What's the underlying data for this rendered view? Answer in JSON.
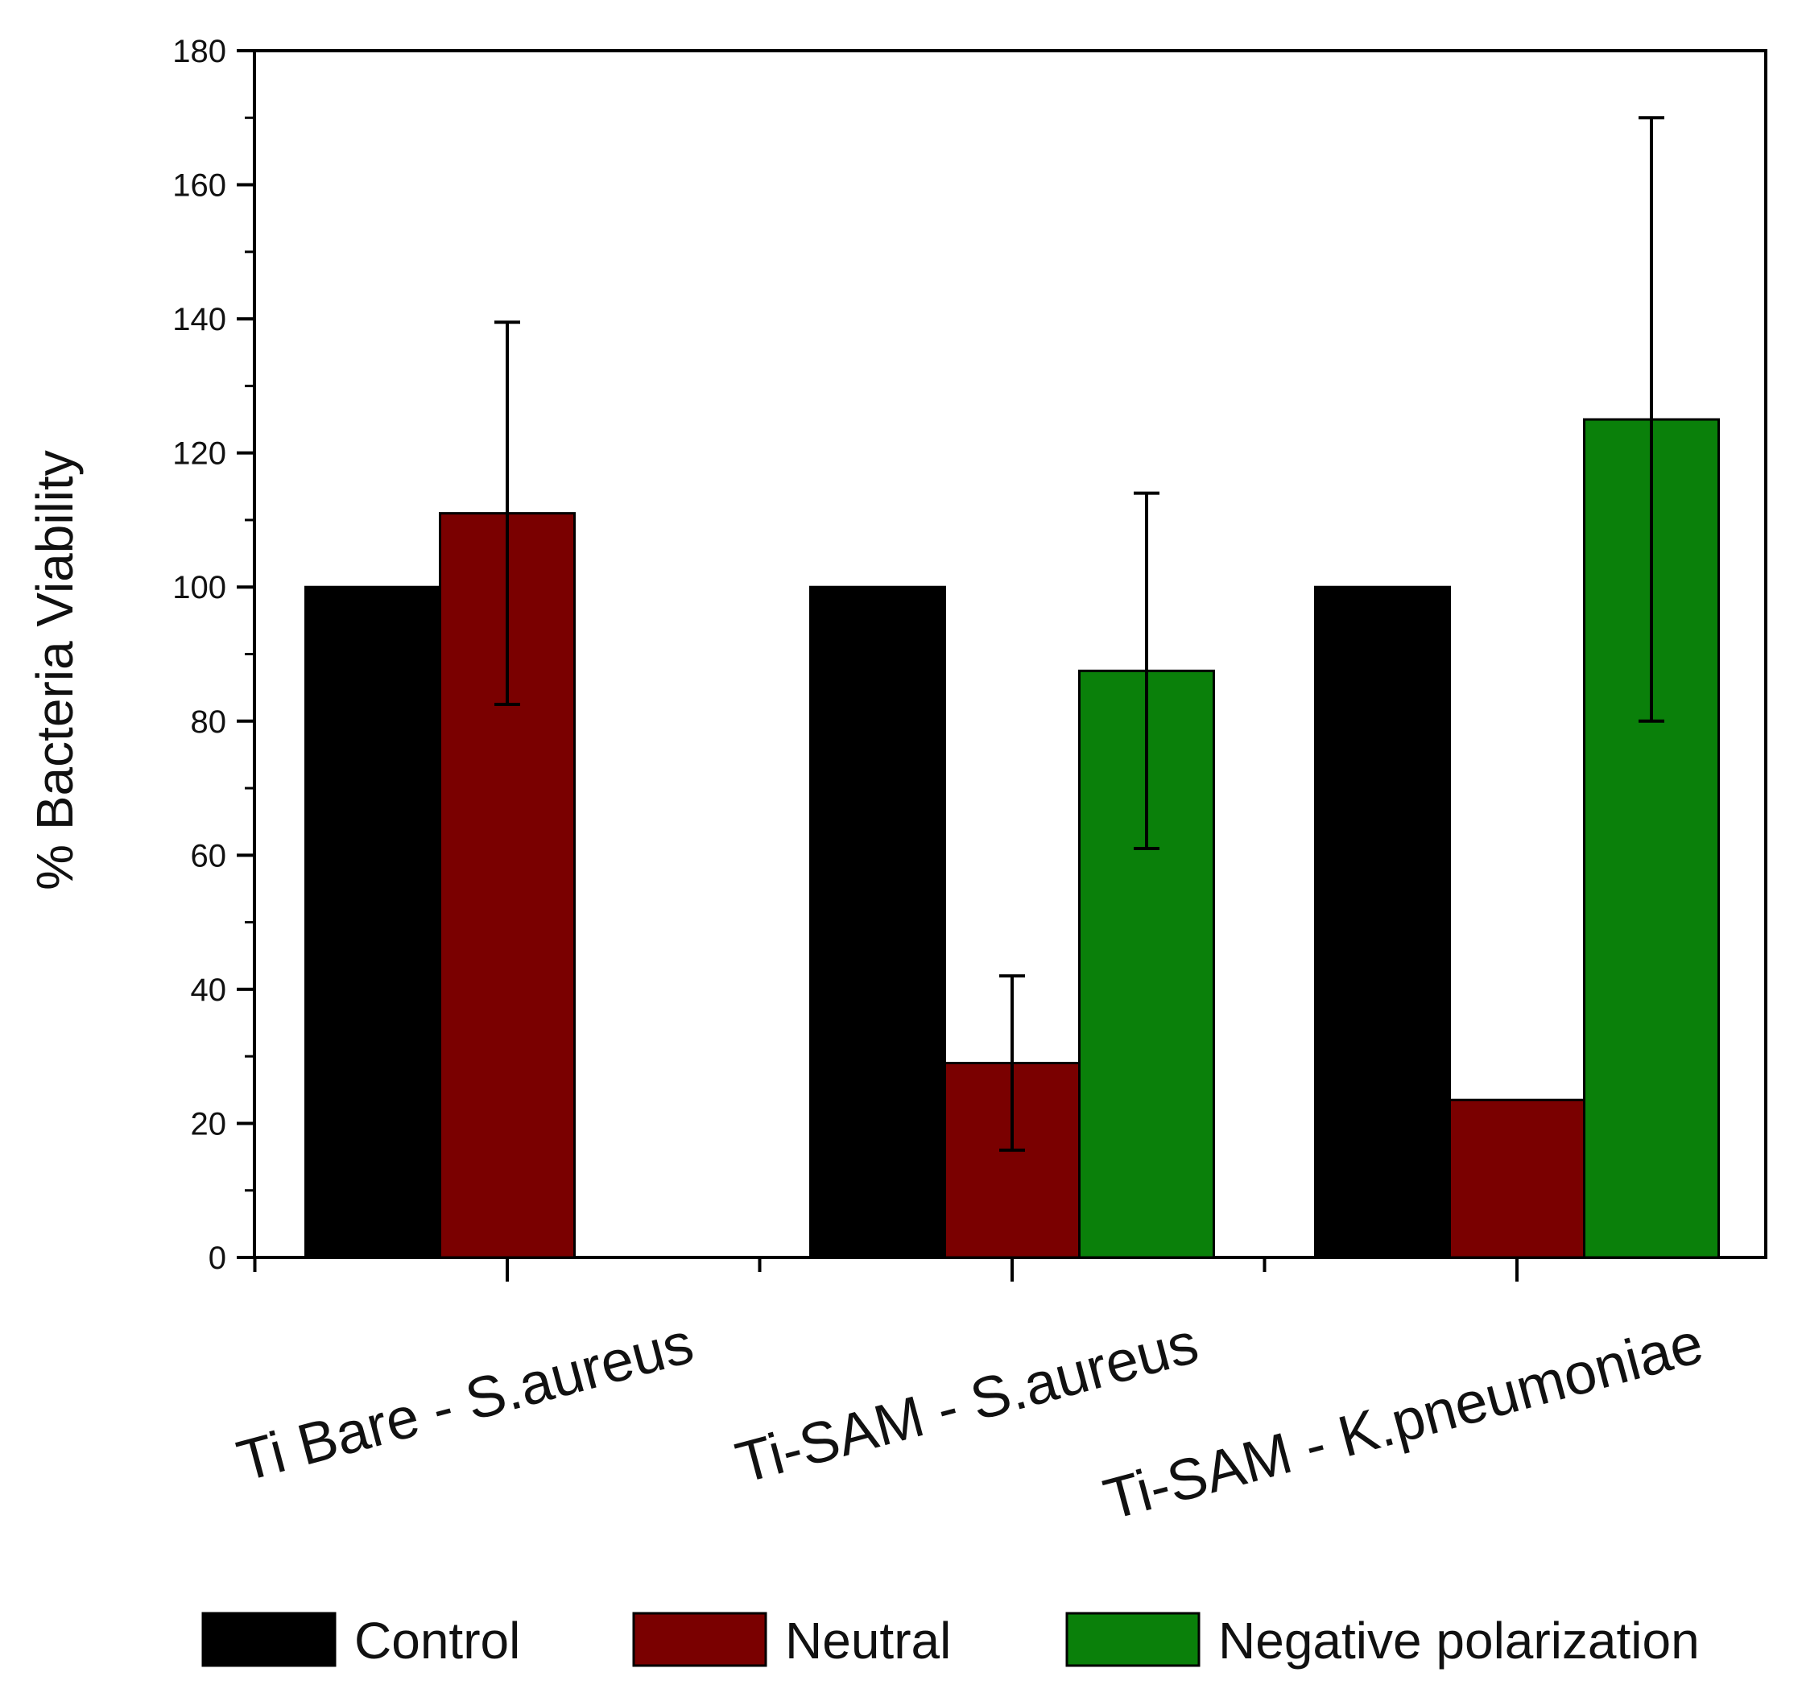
{
  "chart_data": {
    "type": "bar",
    "title": "",
    "xlabel": "",
    "ylabel": "% Bacteria Viability",
    "ylim": [
      0,
      180
    ],
    "yticks": [
      0,
      20,
      40,
      60,
      80,
      100,
      120,
      140,
      160,
      180
    ],
    "categories": [
      "Ti Bare - S.aureus",
      "Ti-SAM - S.aureus",
      "Ti-SAM - K.pneumoniae"
    ],
    "series": [
      {
        "name": "Control",
        "color": "#000000",
        "values": [
          100,
          100,
          100
        ],
        "errors": [
          null,
          null,
          null
        ]
      },
      {
        "name": "Neutral",
        "color": "#7a0000",
        "values": [
          111,
          29,
          23.5
        ],
        "errors": [
          28.5,
          13,
          null
        ]
      },
      {
        "name": "Negative polarization",
        "color": "#0a800a",
        "values": [
          null,
          87.5,
          125
        ],
        "errors": [
          null,
          26.5,
          45
        ]
      }
    ],
    "legend_position": "bottom"
  }
}
